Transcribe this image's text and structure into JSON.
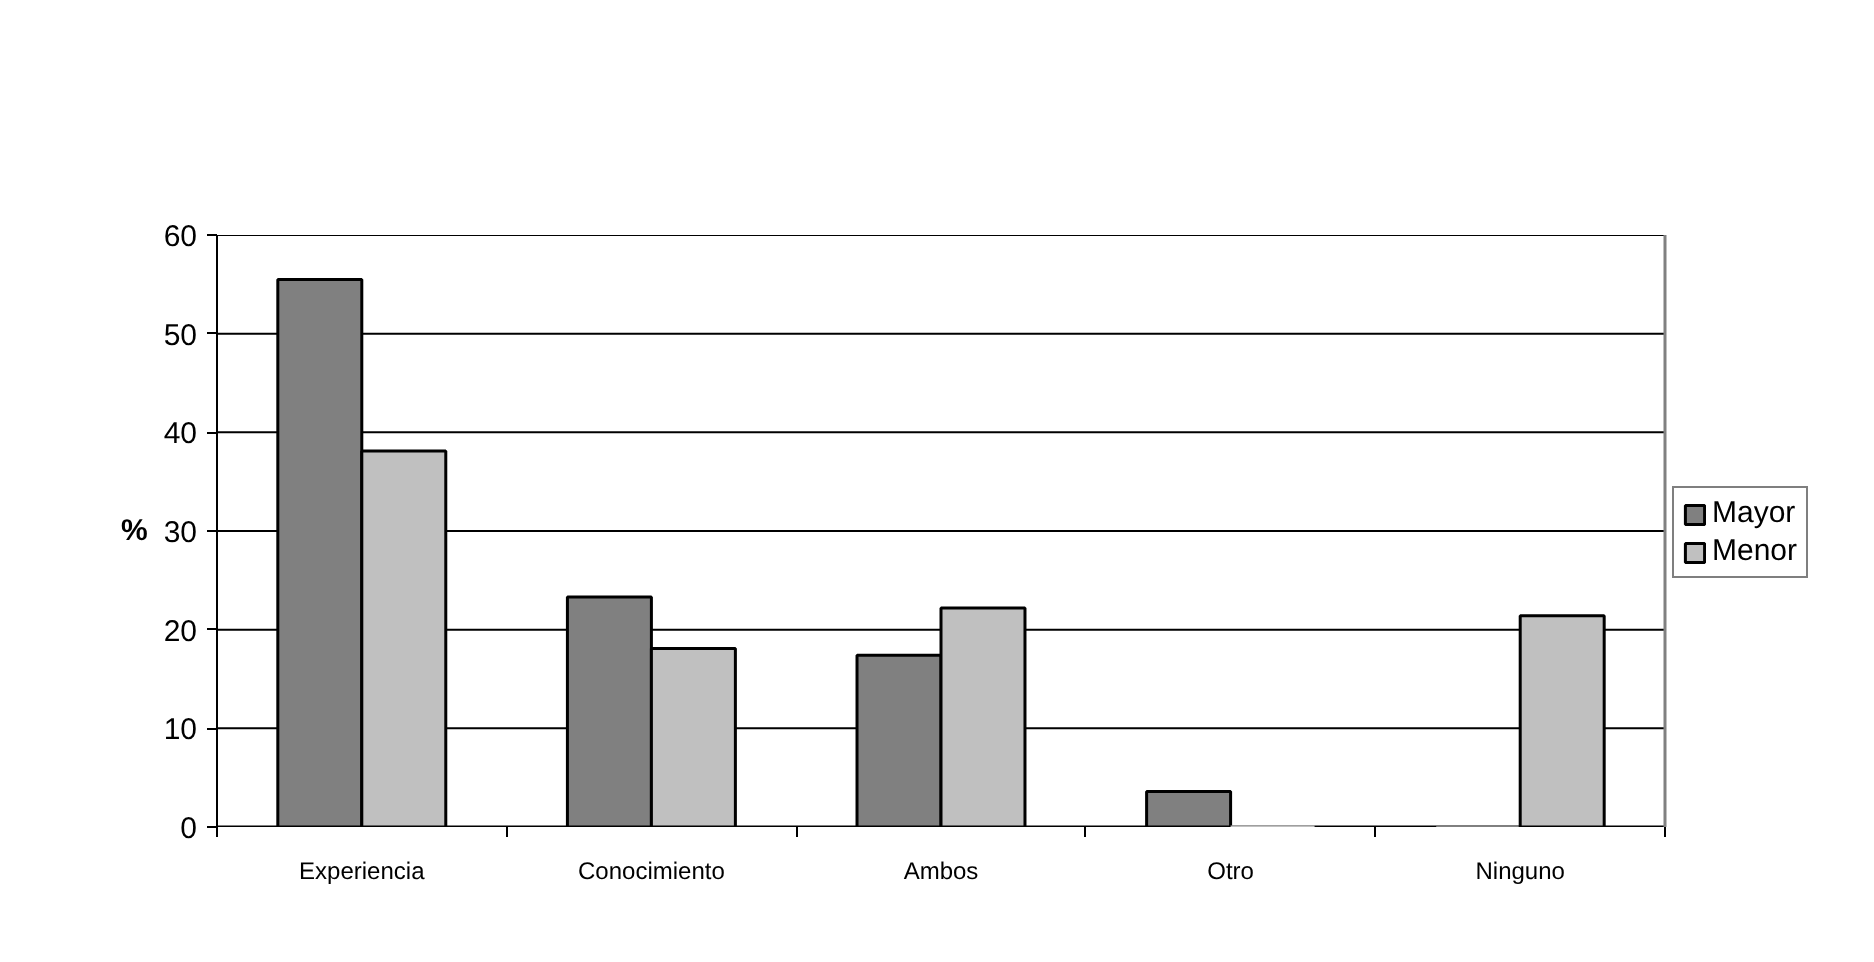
{
  "chart_data": {
    "type": "bar",
    "ylabel": "%",
    "categories": [
      "Experiencia",
      "Conocimiento",
      "Ambos",
      "Otro",
      "Ninguno"
    ],
    "series": [
      {
        "name": "Mayor",
        "color": "#808080",
        "values": [
          55.5,
          23.3,
          17.4,
          3.6,
          0
        ]
      },
      {
        "name": "Menor",
        "color": "#c0c0c0",
        "values": [
          38.1,
          18.1,
          22.2,
          0,
          21.4
        ]
      }
    ],
    "ylim": [
      0,
      60
    ],
    "yticks": [
      0,
      10,
      20,
      30,
      40,
      50,
      60
    ],
    "grid": "y",
    "legend": "right"
  }
}
